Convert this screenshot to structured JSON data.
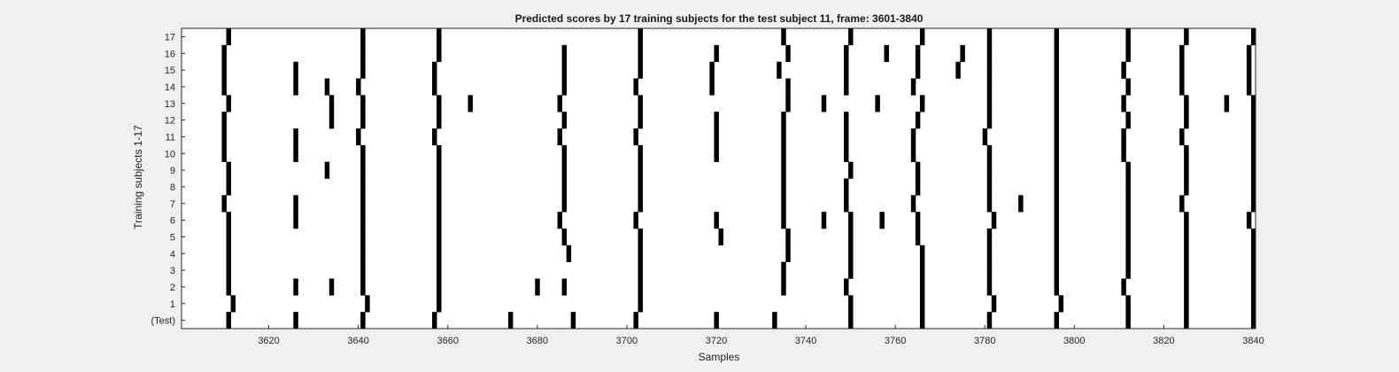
{
  "chart_data": {
    "type": "heatmap",
    "title": "Predicted scores by 17 training subjects for the test subject 11, frame: 3601-3840",
    "xlabel": "Samples",
    "ylabel": "Training subjects 1-17",
    "xlim": [
      3601,
      3840
    ],
    "xticks": [
      3620,
      3640,
      3660,
      3680,
      3700,
      3720,
      3740,
      3760,
      3780,
      3800,
      3820,
      3840
    ],
    "y_categories": [
      "(Test)",
      "1",
      "2",
      "3",
      "4",
      "5",
      "6",
      "7",
      "8",
      "9",
      "10",
      "11",
      "12",
      "13",
      "14",
      "15",
      "16",
      "17"
    ],
    "colormap": {
      "event": "#000000",
      "background": "#ffffff"
    },
    "grid": false,
    "legend": "none",
    "rows": [
      {
        "label": "(Test)",
        "events": [
          3611,
          3626,
          3641,
          3657,
          3674,
          3688,
          3702,
          3720,
          3733,
          3750,
          3766,
          3781,
          3796,
          3812,
          3825,
          3840
        ]
      },
      {
        "label": "1",
        "events": [
          3612,
          3642,
          3658,
          3703,
          3750,
          3766,
          3782,
          3797,
          3812,
          3825,
          3840
        ]
      },
      {
        "label": "2",
        "events": [
          3611,
          3626,
          3634,
          3641,
          3658,
          3680,
          3686,
          3703,
          3735,
          3749,
          3766,
          3781,
          3796,
          3811,
          3825,
          3840
        ]
      },
      {
        "label": "3",
        "events": [
          3611,
          3641,
          3658,
          3703,
          3735,
          3750,
          3766,
          3781,
          3796,
          3812,
          3825,
          3840
        ]
      },
      {
        "label": "4",
        "events": [
          3611,
          3641,
          3658,
          3687,
          3703,
          3736,
          3750,
          3766,
          3781,
          3796,
          3812,
          3825,
          3840
        ]
      },
      {
        "label": "5",
        "events": [
          3611,
          3641,
          3658,
          3686,
          3703,
          3721,
          3736,
          3750,
          3765,
          3781,
          3796,
          3812,
          3825,
          3840
        ]
      },
      {
        "label": "6",
        "events": [
          3611,
          3626,
          3641,
          3658,
          3685,
          3702,
          3720,
          3735,
          3744,
          3750,
          3757,
          3765,
          3782,
          3796,
          3812,
          3825,
          3839
        ]
      },
      {
        "label": "7",
        "events": [
          3610,
          3626,
          3641,
          3658,
          3686,
          3703,
          3735,
          3749,
          3764,
          3781,
          3788,
          3796,
          3812,
          3824,
          3840
        ]
      },
      {
        "label": "8",
        "events": [
          3611,
          3641,
          3658,
          3686,
          3703,
          3735,
          3749,
          3765,
          3781,
          3796,
          3812,
          3825,
          3840
        ]
      },
      {
        "label": "9",
        "events": [
          3611,
          3633,
          3641,
          3658,
          3686,
          3703,
          3735,
          3750,
          3765,
          3781,
          3796,
          3812,
          3825,
          3840
        ]
      },
      {
        "label": "10",
        "events": [
          3610,
          3626,
          3641,
          3658,
          3686,
          3703,
          3720,
          3735,
          3749,
          3764,
          3781,
          3796,
          3811,
          3825,
          3840
        ]
      },
      {
        "label": "11",
        "events": [
          3610,
          3626,
          3640,
          3657,
          3685,
          3702,
          3720,
          3735,
          3749,
          3764,
          3780,
          3796,
          3811,
          3824,
          3840
        ]
      },
      {
        "label": "12",
        "events": [
          3610,
          3634,
          3641,
          3658,
          3686,
          3703,
          3720,
          3735,
          3749,
          3765,
          3781,
          3796,
          3812,
          3825,
          3840
        ]
      },
      {
        "label": "13",
        "events": [
          3611,
          3634,
          3641,
          3658,
          3665,
          3685,
          3703,
          3736,
          3744,
          3756,
          3766,
          3781,
          3796,
          3811,
          3825,
          3834,
          3840
        ]
      },
      {
        "label": "14",
        "events": [
          3610,
          3626,
          3633,
          3640,
          3657,
          3686,
          3702,
          3719,
          3736,
          3749,
          3764,
          3781,
          3796,
          3812,
          3824,
          3839
        ]
      },
      {
        "label": "15",
        "events": [
          3610,
          3626,
          3641,
          3657,
          3686,
          3703,
          3719,
          3734,
          3749,
          3765,
          3774,
          3781,
          3796,
          3811,
          3824,
          3839
        ]
      },
      {
        "label": "16",
        "events": [
          3610,
          3641,
          3658,
          3686,
          3703,
          3720,
          3736,
          3749,
          3758,
          3765,
          3775,
          3781,
          3796,
          3812,
          3824,
          3839
        ]
      },
      {
        "label": "17",
        "events": [
          3611,
          3641,
          3658,
          3703,
          3735,
          3750,
          3766,
          3781,
          3796,
          3812,
          3825,
          3840
        ]
      }
    ]
  }
}
